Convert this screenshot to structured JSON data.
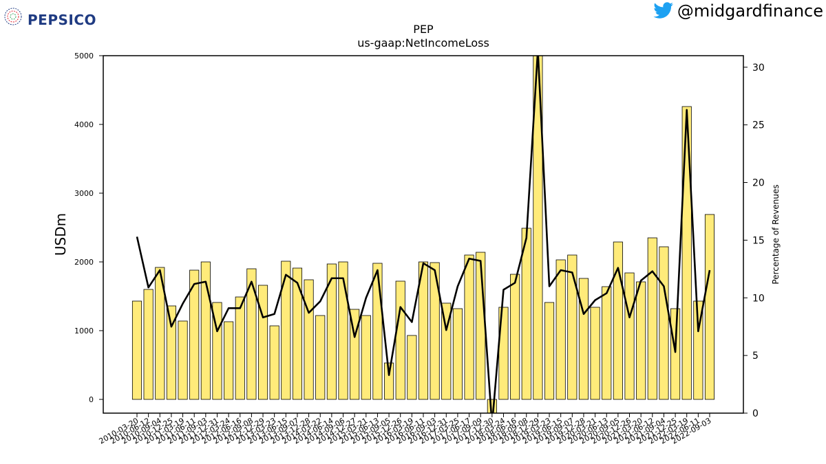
{
  "brand": {
    "logo_text": "PEPSICO",
    "logo_colors": {
      "blue": "#1f3b82",
      "red": "#e32934"
    },
    "globe_icon": "pepsico-globe-icon"
  },
  "social": {
    "icon": "twitter-bird-icon",
    "icon_color": "#1da1f2",
    "handle": "@midgardfinance"
  },
  "chart_data": {
    "type": "bar",
    "title": "PEP",
    "subtitle": "us-gaap:NetIncomeLoss",
    "ylabel": "USDm",
    "y2label": "Percentage of Revenues",
    "ylim": [
      -200,
      5000
    ],
    "y2lim": [
      0,
      31
    ],
    "yticks": [
      0,
      1000,
      2000,
      3000,
      4000,
      5000
    ],
    "y2ticks": [
      0,
      5,
      10,
      15,
      20,
      25,
      30
    ],
    "bar_color": "#ffeb7a",
    "bar_edge": "#000000",
    "line_color": "#000000",
    "categories": [
      "2010-03-20",
      "2010-06-12",
      "2010-09-04",
      "2010-12-25",
      "2011-03-19",
      "2011-06-11",
      "2011-09-03",
      "2011-12-31",
      "2012-03-24",
      "2012-06-16",
      "2012-09-08",
      "2012-12-29",
      "2013-03-23",
      "2013-06-15",
      "2013-09-07",
      "2013-12-28",
      "2014-03-22",
      "2014-06-14",
      "2014-09-06",
      "2014-12-27",
      "2015-03-21",
      "2015-06-13",
      "2015-09-05",
      "2015-12-26",
      "2016-03-19",
      "2016-06-11",
      "2016-09-03",
      "2016-12-31",
      "2017-03-25",
      "2017-06-17",
      "2017-09-09",
      "2017-12-30",
      "2018-03-24",
      "2018-06-16",
      "2018-09-08",
      "2018-12-29",
      "2019-03-23",
      "2019-06-15",
      "2019-09-07",
      "2019-12-28",
      "2020-03-21",
      "2020-06-13",
      "2020-09-05",
      "2020-12-26",
      "2021-03-20",
      "2021-06-12",
      "2021-09-04",
      "2021-12-25",
      "2022-03-19",
      "2022-06-11",
      "2022-09-03"
    ],
    "values": [
      1430,
      1600,
      1920,
      1360,
      1140,
      1880,
      2000,
      1410,
      1130,
      1490,
      1900,
      1660,
      1070,
      2010,
      1910,
      1740,
      1220,
      1970,
      2000,
      1310,
      1220,
      1980,
      530,
      1720,
      930,
      2000,
      1990,
      1400,
      1320,
      2100,
      2140,
      -200,
      1340,
      1820,
      2490,
      5000,
      1410,
      2030,
      2100,
      1760,
      1340,
      1640,
      2290,
      1840,
      1710,
      2350,
      2220,
      1320,
      4260,
      1430,
      2690
    ],
    "pct_of_revenue": [
      15.3,
      10.9,
      12.4,
      7.5,
      9.5,
      11.2,
      11.4,
      7.1,
      9.1,
      9.1,
      11.4,
      8.3,
      8.6,
      12.0,
      11.3,
      8.7,
      9.7,
      11.7,
      11.7,
      6.6,
      10.0,
      12.4,
      3.3,
      9.2,
      7.9,
      13.0,
      12.4,
      7.2,
      11.0,
      13.4,
      13.2,
      -1.0,
      10.7,
      11.3,
      15.2,
      31.5,
      11.0,
      12.4,
      12.2,
      8.6,
      9.8,
      10.4,
      12.6,
      8.3,
      11.5,
      12.3,
      11.0,
      5.3,
      26.3,
      7.1,
      12.4
    ]
  }
}
